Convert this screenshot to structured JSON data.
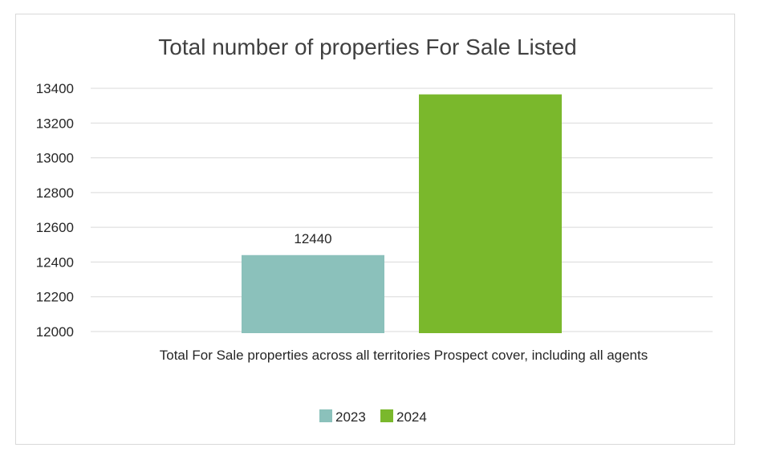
{
  "chart_data": {
    "type": "bar",
    "title": "Total number of properties For Sale Listed",
    "categories": [
      "Total For Sale properties across all territories Prospect cover, including all agents"
    ],
    "series": [
      {
        "name": "2023",
        "values": [
          12440
        ],
        "color": "#8bc1bb",
        "data_label": "12440"
      },
      {
        "name": "2024",
        "values": [
          13365
        ],
        "color": "#7ab82c"
      }
    ],
    "ylim": [
      12000,
      13400
    ],
    "yticks": [
      12000,
      12200,
      12400,
      12600,
      12800,
      13000,
      13200,
      13400
    ],
    "grid": true,
    "legend_position": "bottom"
  }
}
